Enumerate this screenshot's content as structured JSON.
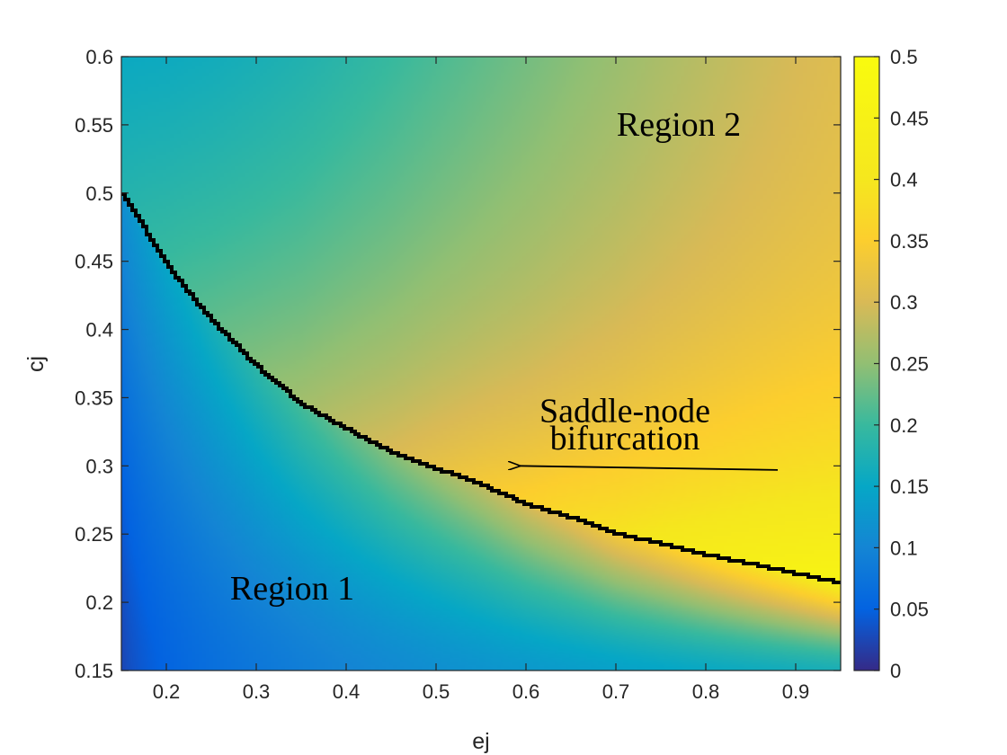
{
  "chart_data": {
    "type": "heatmap",
    "title": "",
    "xlabel": "ej",
    "ylabel": "cj",
    "xlim": [
      0.15,
      0.95
    ],
    "ylim": [
      0.15,
      0.6
    ],
    "x_ticks": [
      "0.2",
      "0.3",
      "0.4",
      "0.5",
      "0.6",
      "0.7",
      "0.8",
      "0.9"
    ],
    "y_ticks": [
      "0.15",
      "0.2",
      "0.25",
      "0.3",
      "0.35",
      "0.4",
      "0.45",
      "0.5",
      "0.55",
      "0.6"
    ],
    "colorbar": {
      "colormap": "parula",
      "range": [
        0,
        0.5
      ],
      "ticks": [
        "0",
        "0.05",
        "0.1",
        "0.15",
        "0.2",
        "0.25",
        "0.3",
        "0.35",
        "0.4",
        "0.45",
        "0.5"
      ]
    },
    "samples": [
      {
        "ej": 0.16,
        "cj": 0.16,
        "value": 0.02
      },
      {
        "ej": 0.3,
        "cj": 0.2,
        "value": 0.09
      },
      {
        "ej": 0.5,
        "cj": 0.16,
        "value": 0.14
      },
      {
        "ej": 0.16,
        "cj": 0.58,
        "value": 0.15
      },
      {
        "ej": 0.5,
        "cj": 0.55,
        "value": 0.22
      },
      {
        "ej": 0.9,
        "cj": 0.58,
        "value": 0.27
      },
      {
        "ej": 0.55,
        "cj": 0.33,
        "value": 0.29
      },
      {
        "ej": 0.93,
        "cj": 0.24,
        "value": 0.45
      }
    ],
    "curve": {
      "ej": [
        0.15,
        0.2,
        0.25,
        0.3,
        0.35,
        0.4,
        0.45,
        0.5,
        0.55,
        0.6,
        0.65,
        0.7,
        0.75,
        0.8,
        0.85,
        0.9,
        0.95
      ],
      "cj": [
        0.5,
        0.447,
        0.406,
        0.373,
        0.345,
        0.327,
        0.31,
        0.298,
        0.286,
        0.272,
        0.262,
        0.25,
        0.243,
        0.235,
        0.228,
        0.221,
        0.214
      ]
    },
    "annotations": [
      {
        "text": "Region 1",
        "ej": 0.34,
        "cj": 0.21
      },
      {
        "text": "Region 2",
        "ej": 0.77,
        "cj": 0.55
      },
      {
        "text": "Saddle-node",
        "ej": 0.71,
        "cj": 0.34
      },
      {
        "text": "bifurcation",
        "ej": 0.71,
        "cj": 0.32
      }
    ],
    "arrow": {
      "from": {
        "ej": 0.88,
        "cj": 0.297
      },
      "to": {
        "ej": 0.58,
        "cj": 0.3
      }
    }
  }
}
